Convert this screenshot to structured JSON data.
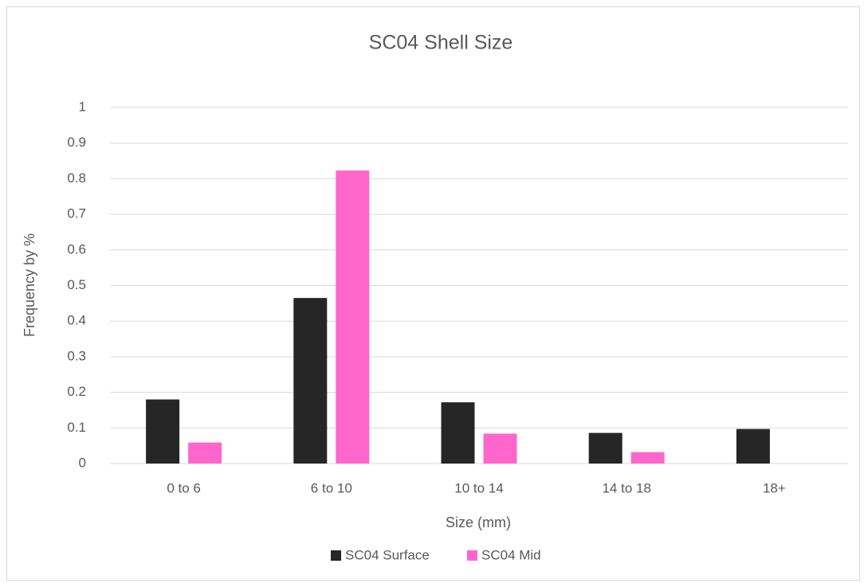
{
  "chart_data": {
    "type": "bar",
    "title": "SC04 Shell Size",
    "x_label": "Size (mm)",
    "y_label": "Frequency by %",
    "categories": [
      "0 to 6",
      "6 to 10",
      "10 to 14",
      "14 to 18",
      "18+"
    ],
    "series": [
      {
        "name": "SC04 Surface",
        "color": "#262626",
        "values": [
          0.18,
          0.465,
          0.172,
          0.086,
          0.097
        ]
      },
      {
        "name": "SC04 Mid",
        "color": "#ff66cc",
        "values": [
          0.059,
          0.823,
          0.084,
          0.032,
          0
        ]
      }
    ],
    "ylim": [
      0,
      1
    ],
    "yticks": [
      0,
      0.1,
      0.2,
      0.3,
      0.4,
      0.5,
      0.6,
      0.7,
      0.8,
      0.9,
      1
    ],
    "grid": true,
    "legend": "bottom"
  }
}
